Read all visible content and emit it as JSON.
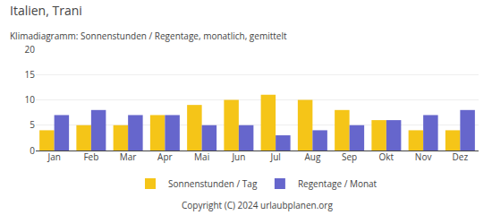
{
  "chart_data": {
    "type": "bar",
    "title": "Italien, Trani",
    "subtitle": "Klimadiagramm: Sonnenstunden / Regentage, monatlich, gemittelt",
    "categories": [
      "Jan",
      "Feb",
      "Mar",
      "Apr",
      "Mai",
      "Jun",
      "Jul",
      "Aug",
      "Sep",
      "Okt",
      "Nov",
      "Dez"
    ],
    "series": [
      {
        "name": "Sonnenstunden / Tag",
        "color": "#F5C518",
        "values": [
          4,
          5,
          5,
          7,
          9,
          10,
          11,
          10,
          8,
          6,
          4,
          4
        ]
      },
      {
        "name": "Regentage / Monat",
        "color": "#6666CC",
        "values": [
          7,
          8,
          7,
          7,
          5,
          5,
          3,
          4,
          5,
          6,
          7,
          8
        ]
      }
    ],
    "ylim": [
      0,
      20
    ],
    "yticks": [
      0,
      5,
      10,
      15,
      20
    ],
    "grid": true,
    "legend": "bottom",
    "annotations": [
      "Copyright (C) 2024 urlaubplanen.org"
    ]
  }
}
